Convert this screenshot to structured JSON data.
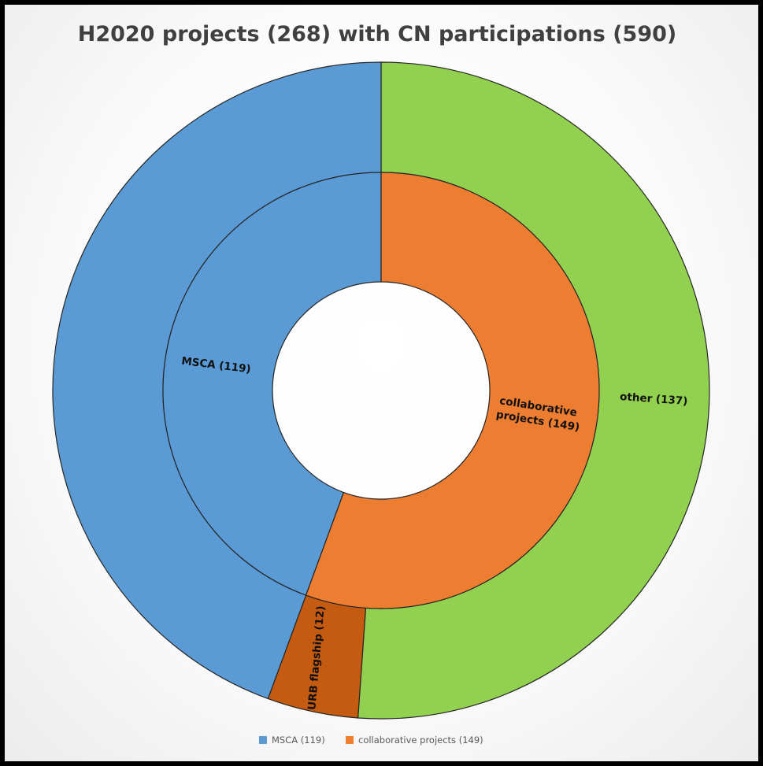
{
  "chart_data": {
    "type": "pie",
    "variant": "nested-donut",
    "title": "H2020 projects (268) with CN participations (590)",
    "inner_ring": {
      "slices": [
        {
          "label": "MSCA (119)",
          "value": 119,
          "color": "#5b9bd5"
        },
        {
          "label": "collaborative projects (149)",
          "value": 149,
          "color": "#ed7d31"
        }
      ]
    },
    "outer_ring": {
      "slices": [
        {
          "label": "URB flagship (12)",
          "value": 12,
          "color": "#c55a11"
        },
        {
          "label": "other (137)",
          "value": 137,
          "color": "#92d050"
        }
      ]
    },
    "legend": {
      "position": "bottom",
      "entries": [
        {
          "label": "MSCA (119)",
          "color": "#5b9bd5"
        },
        {
          "label": "collaborative projects (149)",
          "color": "#ed7d31"
        }
      ]
    }
  }
}
